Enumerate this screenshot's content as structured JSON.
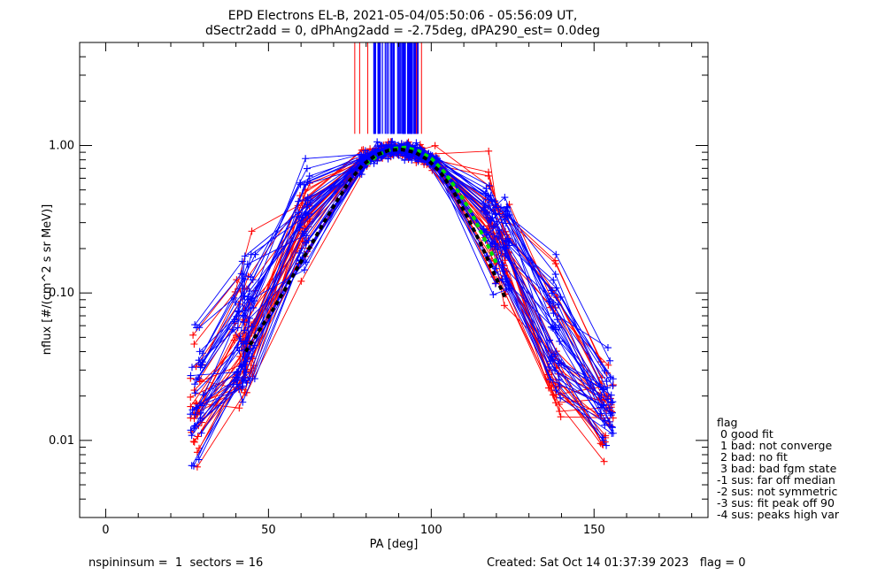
{
  "chart_data": {
    "type": "scatter",
    "title_line1": "EPD Electrons EL-B, 2021-05-04/05:50:06 - 05:56:09 UT,",
    "title_line2": "dSectr2add = 0, dPhAng2add = -2.75deg, dPA290_est=   0.0deg",
    "xlabel": "PA [deg]",
    "ylabel": "nflux [#/(cm^2 s sr MeV)]",
    "xlim": [
      -8,
      185
    ],
    "ylim": [
      0.003,
      5.0
    ],
    "yscale": "log",
    "x_ticks": [
      0,
      50,
      100,
      150
    ],
    "x_tick_labels": [
      "0",
      "50",
      "100",
      "150"
    ],
    "y_ticks": [
      0.01,
      0.1,
      1.0
    ],
    "y_tick_labels": [
      "0.01",
      "0.10",
      "1.00"
    ],
    "series_colors": {
      "red": "#ff0000",
      "blue": "#0000ff",
      "fit_green": "#00dd00",
      "fit_black": "#000000"
    },
    "fit_curves": [
      {
        "name": "",
        "color": "#00dd00",
        "dashed": true,
        "x": [
          80,
          84,
          88,
          92,
          96,
          100,
          104,
          108,
          112,
          116,
          120
        ],
        "y": [
          0.75,
          0.87,
          0.95,
          0.97,
          0.92,
          0.82,
          0.66,
          0.5,
          0.36,
          0.24,
          0.16
        ]
      },
      {
        "name": "",
        "color": "#000000",
        "dashed": true,
        "x": [
          43,
          47,
          51,
          55,
          59,
          63,
          67,
          71,
          75,
          79,
          83,
          87,
          91,
          95,
          99,
          103,
          107,
          111,
          115,
          119,
          123
        ],
        "y": [
          0.04,
          0.055,
          0.075,
          0.105,
          0.15,
          0.21,
          0.3,
          0.42,
          0.58,
          0.74,
          0.86,
          0.93,
          0.94,
          0.9,
          0.8,
          0.65,
          0.48,
          0.33,
          0.22,
          0.14,
          0.09
        ]
      }
    ]
  },
  "legend": {
    "title": "flag",
    "items": [
      " 0 good fit",
      " 1 bad: not converge",
      " 2 bad: no fit",
      " 3 bad: bad fgm state",
      "-1 sus: far off median",
      "-2 sus: not symmetric",
      "-3 sus: fit peak off 90",
      "-4 sus: peaks high var"
    ]
  },
  "footer": {
    "left": "nspininsum =  1  sectors = 16",
    "right": "Created: Sat Oct 14 01:37:39 2023   flag = 0"
  }
}
